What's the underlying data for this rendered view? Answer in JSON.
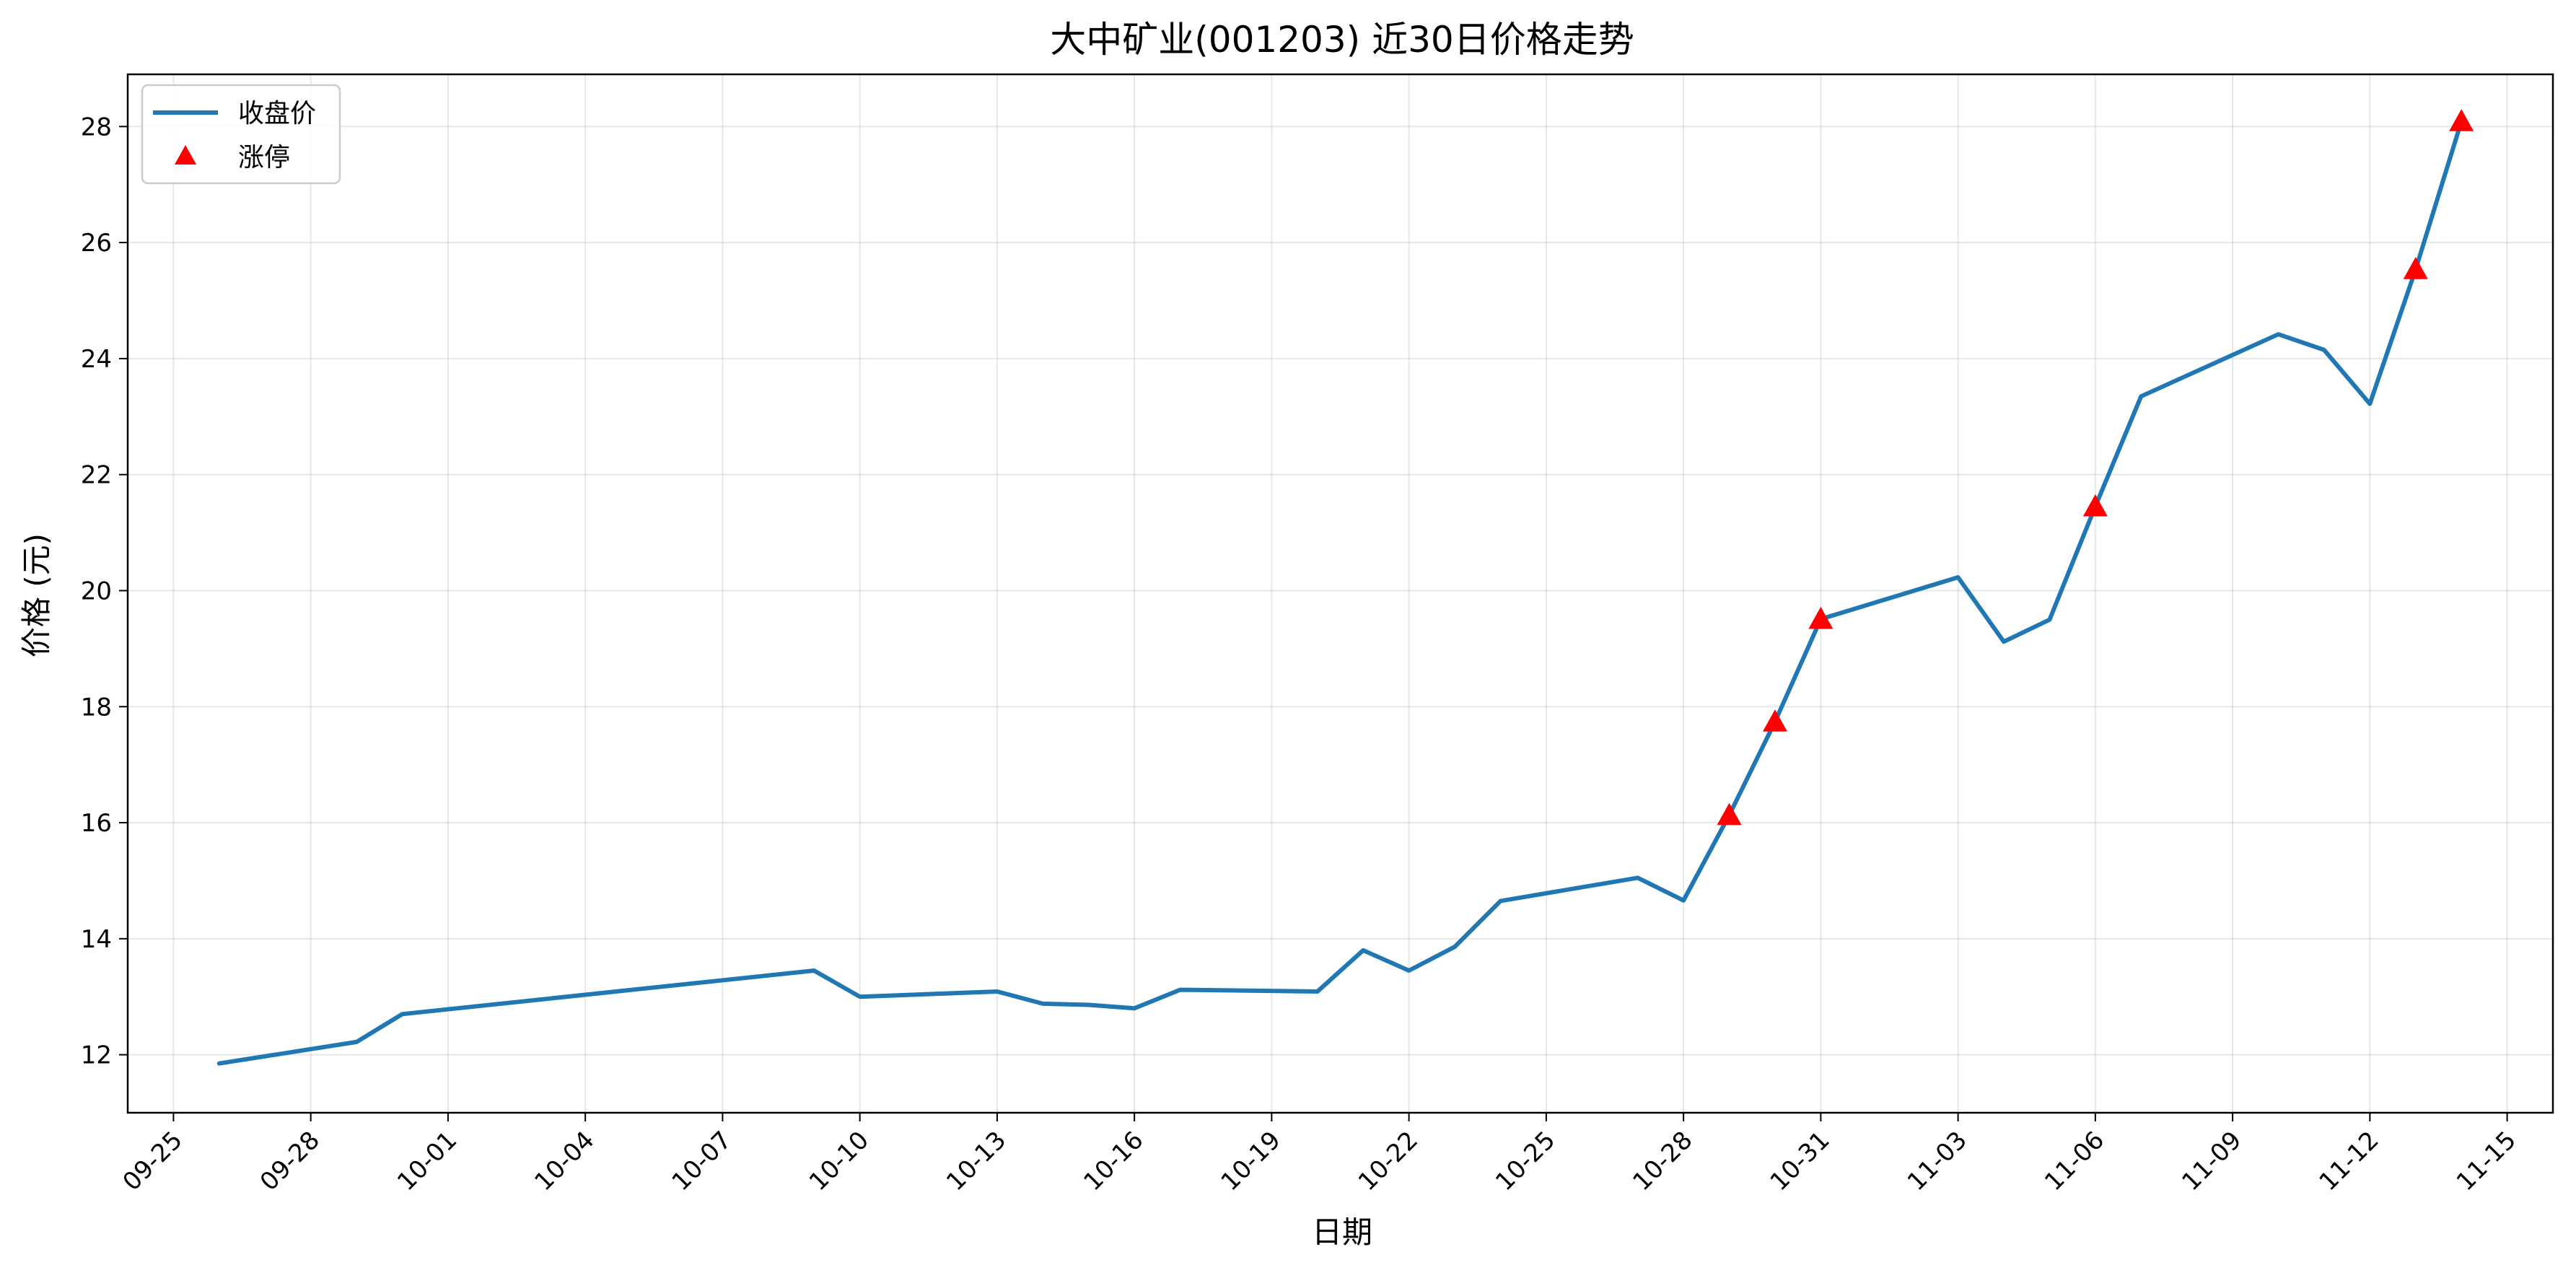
{
  "chart_data": {
    "type": "line",
    "title": "大中矿业(001203) 近30日价格走势",
    "xlabel": "日期",
    "ylabel": "价格 (元)",
    "grid": true,
    "legend_position": "top-left",
    "xlim": [
      "09-24",
      "11-16"
    ],
    "ylim": [
      11,
      28.9
    ],
    "x_ticks": [
      "09-25",
      "09-28",
      "10-01",
      "10-04",
      "10-07",
      "10-10",
      "10-13",
      "10-16",
      "10-19",
      "10-22",
      "10-25",
      "10-28",
      "10-31",
      "11-03",
      "11-06",
      "11-09",
      "11-12",
      "11-15"
    ],
    "y_ticks": [
      12,
      14,
      16,
      18,
      20,
      22,
      24,
      26,
      28
    ],
    "series": [
      {
        "name": "收盘价",
        "kind": "line",
        "color": "#1f77b4",
        "points": [
          {
            "x": "09-26",
            "y": 11.85
          },
          {
            "x": "09-29",
            "y": 12.22
          },
          {
            "x": "09-30",
            "y": 12.7
          },
          {
            "x": "10-09",
            "y": 13.45
          },
          {
            "x": "10-10",
            "y": 13.0
          },
          {
            "x": "10-13",
            "y": 13.09
          },
          {
            "x": "10-14",
            "y": 12.88
          },
          {
            "x": "10-15",
            "y": 12.86
          },
          {
            "x": "10-16",
            "y": 12.8
          },
          {
            "x": "10-17",
            "y": 13.12
          },
          {
            "x": "10-20",
            "y": 13.09
          },
          {
            "x": "10-21",
            "y": 13.8
          },
          {
            "x": "10-22",
            "y": 13.45
          },
          {
            "x": "10-23",
            "y": 13.86
          },
          {
            "x": "10-24",
            "y": 14.65
          },
          {
            "x": "10-27",
            "y": 15.05
          },
          {
            "x": "10-28",
            "y": 14.66
          },
          {
            "x": "10-29",
            "y": 16.13
          },
          {
            "x": "10-30",
            "y": 17.74
          },
          {
            "x": "10-31",
            "y": 19.51
          },
          {
            "x": "11-03",
            "y": 20.23
          },
          {
            "x": "11-04",
            "y": 19.12
          },
          {
            "x": "11-05",
            "y": 19.5
          },
          {
            "x": "11-06",
            "y": 21.45
          },
          {
            "x": "11-07",
            "y": 23.35
          },
          {
            "x": "11-10",
            "y": 24.42
          },
          {
            "x": "11-11",
            "y": 24.15
          },
          {
            "x": "11-12",
            "y": 23.22
          },
          {
            "x": "11-13",
            "y": 25.54
          },
          {
            "x": "11-14",
            "y": 28.09
          }
        ]
      },
      {
        "name": "涨停",
        "kind": "scatter",
        "marker": "triangle",
        "color": "#ff0000",
        "points": [
          {
            "x": "10-29",
            "y": 16.13
          },
          {
            "x": "10-30",
            "y": 17.74
          },
          {
            "x": "10-31",
            "y": 19.51
          },
          {
            "x": "11-06",
            "y": 21.45
          },
          {
            "x": "11-13",
            "y": 25.54
          },
          {
            "x": "11-14",
            "y": 28.09
          }
        ]
      }
    ]
  }
}
